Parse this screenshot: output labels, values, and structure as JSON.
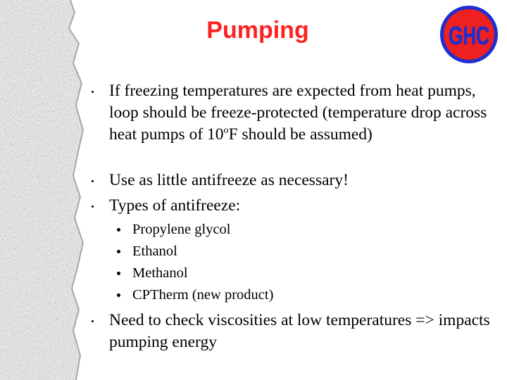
{
  "title": "Pumping",
  "logo": {
    "text": "GHC"
  },
  "bullets": [
    {
      "text_before": "If freezing temperatures are expected from heat pumps, loop should be freeze-protected (temperature drop across heat pumps of 10",
      "superscript": "o",
      "text_after": "F should be assumed)"
    },
    {
      "text": "Use as little antifreeze as necessary!"
    },
    {
      "text": "Types of antifreeze:",
      "sub_bullets": [
        "Propylene glycol",
        "Ethanol",
        "Methanol",
        "CPTherm (new product)"
      ]
    },
    {
      "text": "Need to check viscosities at low temperatures => impacts pumping energy"
    }
  ]
}
